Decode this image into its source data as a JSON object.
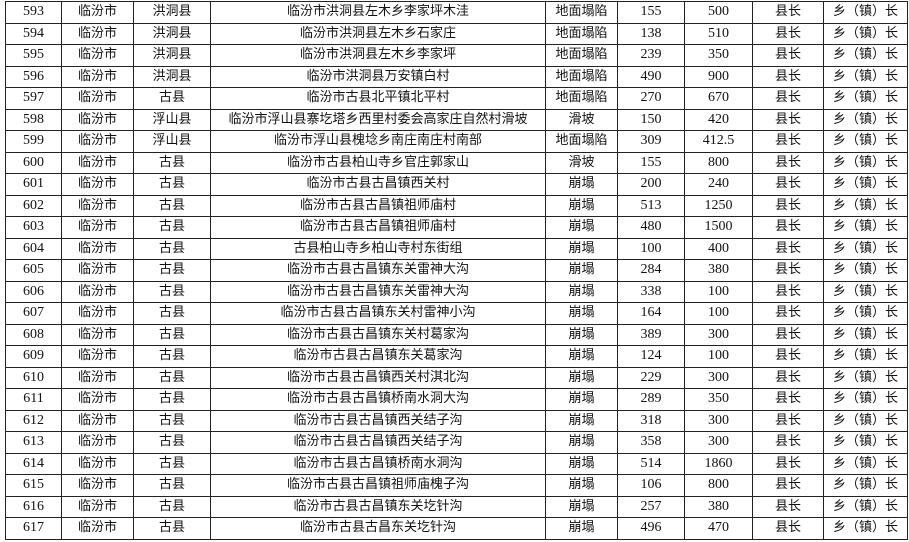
{
  "rows": [
    [
      "593",
      "临汾市",
      "洪洞县",
      "临汾市洪洞县左木乡李家坪木洼",
      "地面塌陷",
      "155",
      "500",
      "县长",
      "乡（镇）长"
    ],
    [
      "594",
      "临汾市",
      "洪洞县",
      "临汾市洪洞县左木乡石家庄",
      "地面塌陷",
      "138",
      "510",
      "县长",
      "乡（镇）长"
    ],
    [
      "595",
      "临汾市",
      "洪洞县",
      "临汾市洪洞县左木乡李家坪",
      "地面塌陷",
      "239",
      "350",
      "县长",
      "乡（镇）长"
    ],
    [
      "596",
      "临汾市",
      "洪洞县",
      "临汾市洪洞县万安镇白村",
      "地面塌陷",
      "490",
      "900",
      "县长",
      "乡（镇）长"
    ],
    [
      "597",
      "临汾市",
      "古县",
      "临汾市古县北平镇北平村",
      "地面塌陷",
      "270",
      "670",
      "县长",
      "乡（镇）长"
    ],
    [
      "598",
      "临汾市",
      "浮山县",
      "临汾市浮山县寨圪塔乡西里村委会高家庄自然村滑坡",
      "滑坡",
      "150",
      "420",
      "县长",
      "乡（镇）长"
    ],
    [
      "599",
      "临汾市",
      "浮山县",
      "临汾市浮山县槐埝乡南庄南庄村南部",
      "地面塌陷",
      "309",
      "412.5",
      "县长",
      "乡（镇）长"
    ],
    [
      "600",
      "临汾市",
      "古县",
      "临汾市古县柏山寺乡官庄郭家山",
      "滑坡",
      "155",
      "800",
      "县长",
      "乡（镇）长"
    ],
    [
      "601",
      "临汾市",
      "古县",
      "临汾市古县古昌镇西关村",
      "崩塌",
      "200",
      "240",
      "县长",
      "乡（镇）长"
    ],
    [
      "602",
      "临汾市",
      "古县",
      "临汾市古县古昌镇祖师庙村",
      "崩塌",
      "513",
      "1250",
      "县长",
      "乡（镇）长"
    ],
    [
      "603",
      "临汾市",
      "古县",
      "临汾市古县古昌镇祖师庙村",
      "崩塌",
      "480",
      "1500",
      "县长",
      "乡（镇）长"
    ],
    [
      "604",
      "临汾市",
      "古县",
      "古县柏山寺乡柏山寺村东街组",
      "崩塌",
      "100",
      "400",
      "县长",
      "乡（镇）长"
    ],
    [
      "605",
      "临汾市",
      "古县",
      "临汾市古县古昌镇东关雷神大沟",
      "崩塌",
      "284",
      "380",
      "县长",
      "乡（镇）长"
    ],
    [
      "606",
      "临汾市",
      "古县",
      "临汾市古县古昌镇东关雷神大沟",
      "崩塌",
      "338",
      "100",
      "县长",
      "乡（镇）长"
    ],
    [
      "607",
      "临汾市",
      "古县",
      "临汾市古县古昌镇东关村雷神小沟",
      "崩塌",
      "164",
      "100",
      "县长",
      "乡（镇）长"
    ],
    [
      "608",
      "临汾市",
      "古县",
      "临汾市古县古昌镇东关村葛家沟",
      "崩塌",
      "389",
      "300",
      "县长",
      "乡（镇）长"
    ],
    [
      "609",
      "临汾市",
      "古县",
      "临汾市古县古昌镇东关葛家沟",
      "崩塌",
      "124",
      "100",
      "县长",
      "乡（镇）长"
    ],
    [
      "610",
      "临汾市",
      "古县",
      "临汾市古县古昌镇西关村淇北沟",
      "崩塌",
      "229",
      "300",
      "县长",
      "乡（镇）长"
    ],
    [
      "611",
      "临汾市",
      "古县",
      "临汾市古县古昌镇桥南水洞大沟",
      "崩塌",
      "289",
      "350",
      "县长",
      "乡（镇）长"
    ],
    [
      "612",
      "临汾市",
      "古县",
      "临汾市古县古昌镇西关结子沟",
      "崩塌",
      "318",
      "300",
      "县长",
      "乡（镇）长"
    ],
    [
      "613",
      "临汾市",
      "古县",
      "临汾市古县古昌镇西关结子沟",
      "崩塌",
      "358",
      "300",
      "县长",
      "乡（镇）长"
    ],
    [
      "614",
      "临汾市",
      "古县",
      "临汾市古县古昌镇桥南水洞沟",
      "崩塌",
      "514",
      "1860",
      "县长",
      "乡（镇）长"
    ],
    [
      "615",
      "临汾市",
      "古县",
      "临汾市古县古昌镇祖师庙槐子沟",
      "崩塌",
      "106",
      "800",
      "县长",
      "乡（镇）长"
    ],
    [
      "616",
      "临汾市",
      "古县",
      "临汾市古县古昌镇东关圪针沟",
      "崩塌",
      "257",
      "380",
      "县长",
      "乡（镇）长"
    ],
    [
      "617",
      "临汾市",
      "古县",
      "临汾市古县古昌东关圪针沟",
      "崩塌",
      "496",
      "470",
      "县长",
      "乡（镇）长"
    ]
  ]
}
